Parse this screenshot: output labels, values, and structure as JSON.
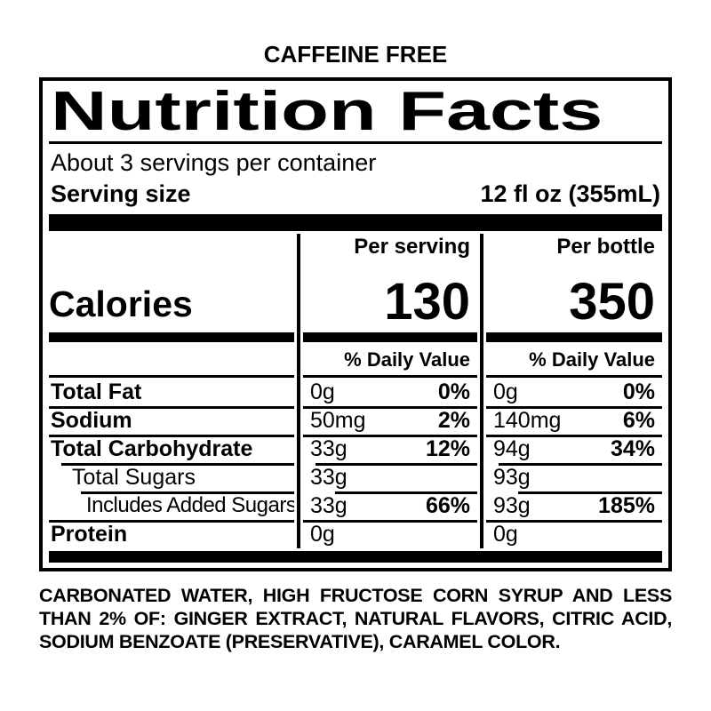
{
  "product": {
    "banner": "CAFFEINE FREE"
  },
  "label": {
    "title": "Nutrition Facts",
    "servings_per_container": "About 3 servings per container",
    "serving_size_label": "Serving size",
    "serving_size_value": "12 fl oz (355mL)",
    "calories_label": "Calories",
    "columns": [
      {
        "header": "Per serving",
        "calories": "130",
        "daily_value_header": "% Daily Value"
      },
      {
        "header": "Per bottle",
        "calories": "350",
        "daily_value_header": "% Daily Value"
      }
    ],
    "rows": [
      {
        "name": "Total Fat",
        "emphasis": "bold",
        "indent": 0,
        "values": [
          {
            "amount": "0g",
            "dv": "0%"
          },
          {
            "amount": "0g",
            "dv": "0%"
          }
        ]
      },
      {
        "name": "Sodium",
        "emphasis": "bold",
        "indent": 0,
        "values": [
          {
            "amount": "50mg",
            "dv": "2%"
          },
          {
            "amount": "140mg",
            "dv": "6%"
          }
        ]
      },
      {
        "name": "Total Carbohydrate",
        "emphasis": "bold",
        "indent": 0,
        "values": [
          {
            "amount": "33g",
            "dv": "12%"
          },
          {
            "amount": "94g",
            "dv": "34%"
          }
        ]
      },
      {
        "name": "Total Sugars",
        "emphasis": "plain",
        "indent": 1,
        "values": [
          {
            "amount": "33g",
            "dv": ""
          },
          {
            "amount": "93g",
            "dv": ""
          }
        ]
      },
      {
        "name": "Includes Added Sugars",
        "emphasis": "plain",
        "indent": 2,
        "values": [
          {
            "amount": "33g",
            "dv": "66%"
          },
          {
            "amount": "93g",
            "dv": "185%"
          }
        ]
      },
      {
        "name": "Protein",
        "emphasis": "bold",
        "indent": 0,
        "values": [
          {
            "amount": "0g",
            "dv": ""
          },
          {
            "amount": "0g",
            "dv": ""
          }
        ]
      }
    ]
  },
  "ingredients": "CARBONATED WATER, HIGH FRUCTOSE CORN SYRUP AND LESS THAN 2% OF: GINGER EXTRACT, NATURAL FLAVORS, CITRIC ACID, SODIUM BENZOATE (PRESERVATIVE), CARAMEL COLOR.",
  "colors": {
    "ink": "#000000",
    "background": "#ffffff"
  }
}
